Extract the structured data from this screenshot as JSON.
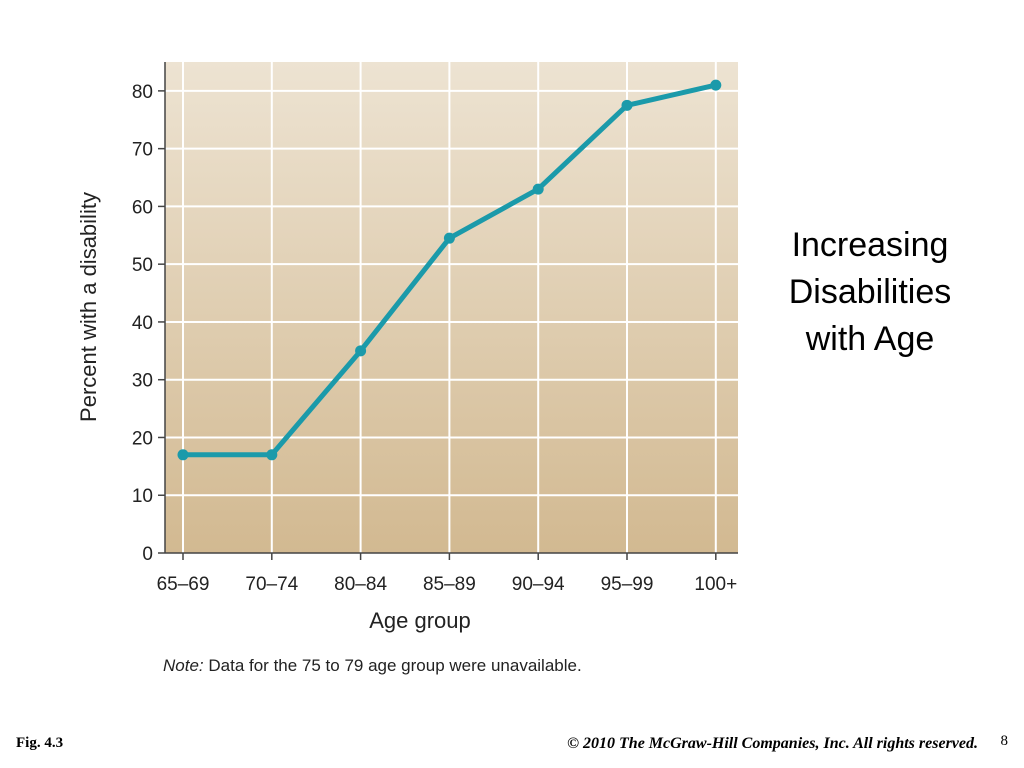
{
  "slide": {
    "title_lines": [
      "Increasing",
      "Disabilities",
      "with Age"
    ],
    "fig_label": "Fig. 4.3",
    "copyright": "© 2010 The McGraw-Hill Companies, Inc. All rights reserved.",
    "page_number": "8"
  },
  "chart_data": {
    "type": "line",
    "categories": [
      "65–69",
      "70–74",
      "80–84",
      "85–89",
      "90–94",
      "95–99",
      "100+"
    ],
    "values": [
      17,
      17,
      35,
      54.5,
      63,
      77.5,
      81
    ],
    "xlabel": "Age group",
    "ylabel": "Percent with a disability",
    "ylim": [
      0,
      85
    ],
    "yticks": [
      0,
      10,
      20,
      30,
      40,
      50,
      60,
      70,
      80
    ],
    "grid": true,
    "note_label": "Note:",
    "note_text": "Data for the 75 to 79 age group were unavailable.",
    "colors": {
      "line": "#1b9aaa",
      "plot_top": "#ede3d2",
      "plot_bottom": "#d2b991",
      "grid": "#ffffff"
    }
  }
}
